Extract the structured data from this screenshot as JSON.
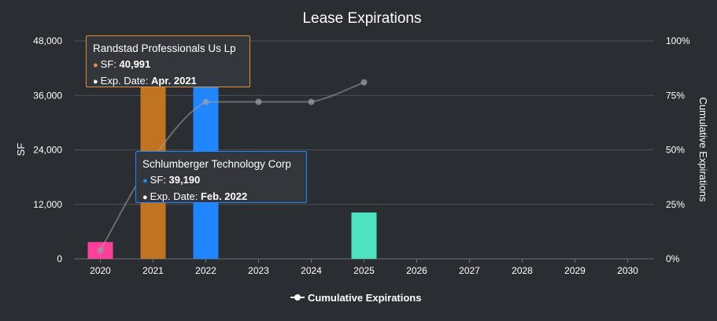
{
  "chart_data": {
    "type": "bar",
    "title": "Lease Expirations",
    "xlabel": "",
    "ylabel": "SF",
    "y2label": "Cumulative Expirations",
    "categories": [
      "2020",
      "2021",
      "2022",
      "2023",
      "2024",
      "2025",
      "2026",
      "2027",
      "2028",
      "2029",
      "2030"
    ],
    "ylim": [
      0,
      48000
    ],
    "yticks": [
      "0",
      "12,000",
      "24,000",
      "36,000",
      "48,000"
    ],
    "y2lim": [
      0,
      100
    ],
    "y2ticks": [
      "0%",
      "25%",
      "50%",
      "75%",
      "100%"
    ],
    "grid": true,
    "legend": "bottom-center",
    "bars": [
      {
        "category": "2020",
        "value": 3700,
        "color": "#ff3f9a"
      },
      {
        "category": "2021",
        "value": 40991,
        "color": "#c07320"
      },
      {
        "category": "2022",
        "value": 39190,
        "color": "#1f86ff"
      },
      {
        "category": "2025",
        "value": 10200,
        "color": "#4de3c1"
      }
    ],
    "series": [
      {
        "name": "Cumulative Expirations",
        "type": "line",
        "axis": "right",
        "color": "#9a9ea3",
        "points": [
          {
            "x": "2020",
            "y": 3.9
          },
          {
            "x": "2021",
            "y": 46
          },
          {
            "x": "2022",
            "y": 72
          },
          {
            "x": "2023",
            "y": 72
          },
          {
            "x": "2024",
            "y": 72
          },
          {
            "x": "2025",
            "y": 81
          }
        ]
      }
    ]
  },
  "tooltips": [
    {
      "name": "Randstad Professionals Us Lp",
      "sf_label": "SF: ",
      "sf_value": "40,991",
      "date_label": "Exp. Date: ",
      "date_value": "Apr. 2021",
      "color": "#e2923a"
    },
    {
      "name": "Schlumberger Technology Corp",
      "sf_label": "SF: ",
      "sf_value": "39,190",
      "date_label": "Exp. Date: ",
      "date_value": "Feb. 2022",
      "color": "#1f86ff"
    }
  ],
  "legend": {
    "label": "Cumulative Expirations"
  }
}
